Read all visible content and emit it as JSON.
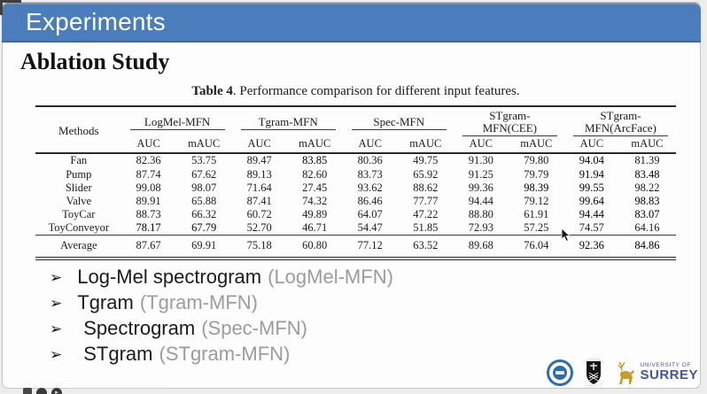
{
  "header": {
    "title": "Experiments"
  },
  "section": {
    "title": "Ablation Study"
  },
  "table": {
    "caption_label": "Table 4",
    "caption_text": ". Performance comparison for different input features.",
    "methods_header": "Methods",
    "groups": [
      {
        "name": "LogMel-MFN",
        "bold": false
      },
      {
        "name": "Tgram-MFN",
        "bold": false
      },
      {
        "name": "Spec-MFN",
        "bold": false
      },
      {
        "name": "STgram-MFN(CEE)",
        "bold": true
      },
      {
        "name": "STgram-MFN(ArcFace)",
        "bold": true
      }
    ],
    "sub": [
      "AUC",
      "mAUC"
    ],
    "rows": [
      {
        "method": "Fan",
        "values": [
          "82.36",
          "53.75",
          "89.47",
          "83.85",
          "80.36",
          "49.75",
          "91.30",
          "79.80",
          "94.04",
          "81.39"
        ],
        "bold": [
          3,
          8
        ]
      },
      {
        "method": "Pump",
        "values": [
          "87.74",
          "67.62",
          "89.13",
          "82.60",
          "83.73",
          "65.92",
          "91.25",
          "79.79",
          "91.94",
          "83.48"
        ],
        "bold": [
          8,
          9
        ]
      },
      {
        "method": "Slider",
        "values": [
          "99.08",
          "98.07",
          "71.64",
          "27.45",
          "93.62",
          "88.62",
          "99.36",
          "98.39",
          "99.55",
          "98.22"
        ],
        "bold": [
          7,
          8
        ]
      },
      {
        "method": "Valve",
        "values": [
          "89.91",
          "65.88",
          "87.41",
          "74.32",
          "86.46",
          "77.77",
          "94.44",
          "79.12",
          "99.64",
          "98.83"
        ],
        "bold": [
          8,
          9
        ]
      },
      {
        "method": "ToyCar",
        "values": [
          "88.73",
          "66.32",
          "60.72",
          "49.89",
          "64.07",
          "47.22",
          "88.80",
          "61.91",
          "94.44",
          "83.07"
        ],
        "bold": [
          8,
          9
        ]
      },
      {
        "method": "ToyConveyor",
        "values": [
          "78.17",
          "67.79",
          "52.70",
          "46.71",
          "54.47",
          "51.85",
          "72.93",
          "57.25",
          "74.57",
          "64.16"
        ],
        "bold": [
          0,
          1
        ]
      },
      {
        "method": "Average",
        "values": [
          "87.67",
          "69.91",
          "75.18",
          "60.80",
          "77.12",
          "63.52",
          "89.68",
          "76.04",
          "92.36",
          "84.86"
        ],
        "bold": [
          8,
          9
        ],
        "cls": "average"
      }
    ]
  },
  "bullets": [
    {
      "text": "Log-Mel spectrogram",
      "paren": "(LogMel-MFN)"
    },
    {
      "text": "Tgram",
      "paren": "(Tgram-MFN)"
    },
    {
      "text": "Spectrogram",
      "paren": "(Spec-MFN)"
    },
    {
      "text": "STgram",
      "paren": "(STgram-MFN)"
    }
  ],
  "bullet_glyph": "➢",
  "logos": {
    "surrey_top": "UNIVERSITY OF",
    "surrey_name": "SURREY"
  },
  "colors": {
    "accent_blue": "#4b7dbd",
    "surrey_blue": "#44549e",
    "stag_gold": "#c79a2a"
  }
}
